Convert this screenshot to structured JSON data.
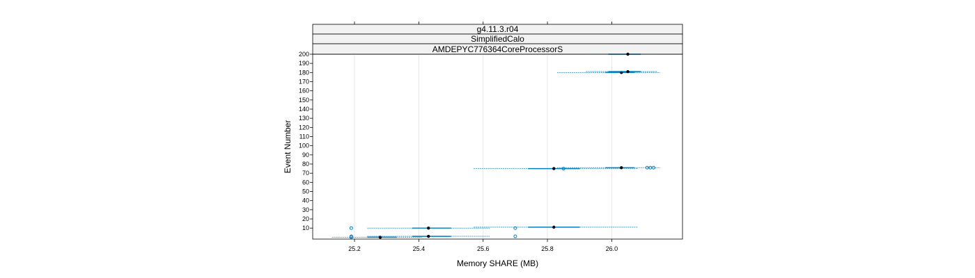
{
  "chart_data": {
    "type": "boxplot",
    "strips": [
      "g4.11.3.r04",
      "SimplifiedCalo",
      "AMDEPYC776364CoreProcessorS"
    ],
    "xlabel": "Memory SHARE (MB)",
    "ylabel": "Event Number",
    "xlim": [
      25.07,
      26.22
    ],
    "ylim": [
      -2,
      200
    ],
    "xticks": [
      25.2,
      25.4,
      25.6,
      25.8,
      26.0
    ],
    "yticks": [
      10,
      20,
      30,
      40,
      50,
      60,
      70,
      80,
      90,
      100,
      110,
      120,
      130,
      140,
      150,
      160,
      170,
      180,
      190,
      200
    ],
    "grid": true,
    "box_color": "#0080c0",
    "median_color": "#000000",
    "boxes": [
      {
        "y": 0,
        "whisker_low": 25.13,
        "q1": 25.24,
        "median": 25.28,
        "q3": 25.33,
        "whisker_high": 25.41,
        "outliers": [
          25.19
        ]
      },
      {
        "y": 1,
        "whisker_low": 25.24,
        "q1": 25.38,
        "median": 25.43,
        "q3": 25.5,
        "whisker_high": 25.62,
        "outliers": [
          25.19,
          25.7
        ]
      },
      {
        "y": 10,
        "whisker_low": 25.24,
        "q1": 25.38,
        "median": 25.43,
        "q3": 25.5,
        "whisker_high": 25.62,
        "outliers": [
          25.19,
          25.7
        ]
      },
      {
        "y": 11,
        "whisker_low": 25.57,
        "q1": 25.74,
        "median": 25.82,
        "q3": 25.9,
        "whisker_high": 26.08,
        "outliers": []
      },
      {
        "y": 75,
        "whisker_low": 25.57,
        "q1": 25.74,
        "median": 25.82,
        "q3": 25.9,
        "whisker_high": 26.08,
        "outliers": [
          25.85
        ]
      },
      {
        "y": 76,
        "whisker_low": 25.83,
        "q1": 25.98,
        "median": 26.03,
        "q3": 26.07,
        "whisker_high": 26.15,
        "outliers": [
          26.11,
          26.12,
          26.13
        ]
      },
      {
        "y": 180,
        "whisker_low": 25.83,
        "q1": 25.98,
        "median": 26.03,
        "q3": 26.07,
        "whisker_high": 26.15,
        "outliers": []
      },
      {
        "y": 181,
        "whisker_low": 25.92,
        "q1": 25.99,
        "median": 26.05,
        "q3": 26.09,
        "whisker_high": 26.14,
        "outliers": []
      },
      {
        "y": 200,
        "whisker_low": 25.92,
        "q1": 25.99,
        "median": 26.05,
        "q3": 26.09,
        "whisker_high": 26.14,
        "outliers": []
      }
    ]
  }
}
